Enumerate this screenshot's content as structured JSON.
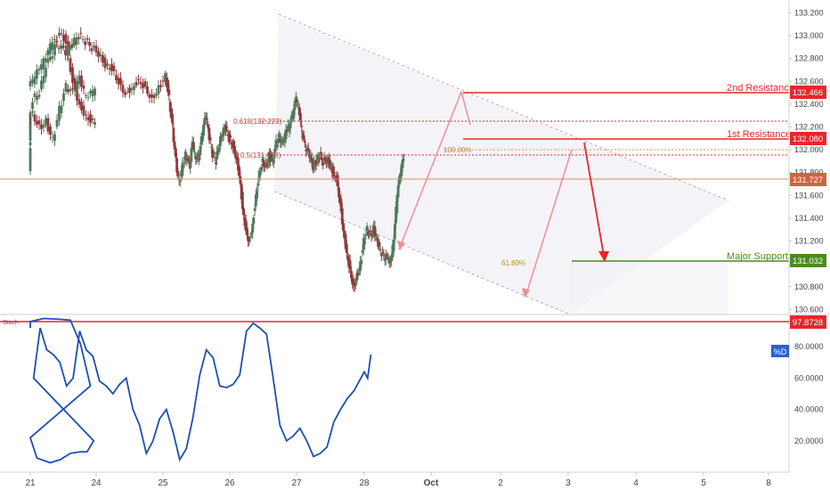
{
  "colors": {
    "up": "#4e7a5c",
    "down": "#8f3b3b",
    "resistance": "#e8262c",
    "support": "#4b8b1f",
    "fib": "#e23434",
    "stoch": "#1d4fb3",
    "channel": "#eeeef4",
    "current": "#d0643f",
    "arrow": "#e23434"
  },
  "chart_data": [
    {
      "type": "candlestick",
      "title": "",
      "x_tick_labels": [
        "21",
        "24",
        "25",
        "26",
        "27",
        "28",
        "Oct",
        "2",
        "3",
        "4",
        "5",
        "8"
      ],
      "y_tick_labels": [
        "133.200",
        "133.000",
        "132.800",
        "132.600",
        "132.400",
        "132.200",
        "132.000",
        "131.800",
        "131.600",
        "131.400",
        "131.200",
        "131.000",
        "130.800",
        "130.600"
      ],
      "ylim": [
        130.58,
        133.25
      ],
      "grid": false,
      "series": [
        {
          "name": "",
          "close_path": [
            [
              20.9,
              131.84
            ],
            [
              20.95,
              132.1
            ],
            [
              21.05,
              132.45
            ],
            [
              21.15,
              132.5
            ],
            [
              21.25,
              132.75
            ],
            [
              21.35,
              132.85
            ],
            [
              21.45,
              133.05
            ],
            [
              21.55,
              132.95
            ],
            [
              21.65,
              132.6
            ],
            [
              21.75,
              132.4
            ],
            [
              21.85,
              132.3
            ],
            [
              21.95,
              132.25
            ],
            [
              22.05,
              132.32
            ],
            [
              22.15,
              132.2
            ],
            [
              22.25,
              132.25
            ],
            [
              22.35,
              132.08
            ],
            [
              22.45,
              132.35
            ],
            [
              22.55,
              132.55
            ],
            [
              22.65,
              132.5
            ],
            [
              22.75,
              132.62
            ],
            [
              22.85,
              132.45
            ],
            [
              22.95,
              132.5
            ],
            [
              23.05,
              132.6
            ],
            [
              23.15,
              132.7
            ],
            [
              23.25,
              132.8
            ],
            [
              23.35,
              132.95
            ],
            [
              23.45,
              132.9
            ],
            [
              23.55,
              132.85
            ],
            [
              23.65,
              132.92
            ],
            [
              23.75,
              133.0
            ],
            [
              23.85,
              132.95
            ],
            [
              23.95,
              132.9
            ],
            [
              24.05,
              132.85
            ],
            [
              24.15,
              132.75
            ],
            [
              24.25,
              132.72
            ],
            [
              24.35,
              132.6
            ],
            [
              24.45,
              132.5
            ],
            [
              24.55,
              132.55
            ],
            [
              24.65,
              132.62
            ],
            [
              24.75,
              132.55
            ],
            [
              24.85,
              132.45
            ],
            [
              24.95,
              132.55
            ],
            [
              25.05,
              132.65
            ],
            [
              25.1,
              132.45
            ],
            [
              25.15,
              132.2
            ],
            [
              25.2,
              131.9
            ],
            [
              25.25,
              131.7
            ],
            [
              25.3,
              131.85
            ],
            [
              25.35,
              131.95
            ],
            [
              25.4,
              131.85
            ],
            [
              25.45,
              132.05
            ],
            [
              25.5,
              131.9
            ],
            [
              25.55,
              131.95
            ],
            [
              25.6,
              132.15
            ],
            [
              25.65,
              132.3
            ],
            [
              25.7,
              132.1
            ],
            [
              25.75,
              131.95
            ],
            [
              25.8,
              131.9
            ],
            [
              25.85,
              132.05
            ],
            [
              25.9,
              132.15
            ],
            [
              25.95,
              132.2
            ],
            [
              26.0,
              132.1
            ],
            [
              26.05,
              132.05
            ],
            [
              26.1,
              131.95
            ],
            [
              26.15,
              131.8
            ],
            [
              26.2,
              131.5
            ],
            [
              26.25,
              131.3
            ],
            [
              26.3,
              131.2
            ],
            [
              26.35,
              131.35
            ],
            [
              26.4,
              131.6
            ],
            [
              26.45,
              131.8
            ],
            [
              26.5,
              131.9
            ],
            [
              26.55,
              131.85
            ],
            [
              26.6,
              131.95
            ],
            [
              26.65,
              131.9
            ],
            [
              26.7,
              132.05
            ],
            [
              26.75,
              132.1
            ],
            [
              26.8,
              132.05
            ],
            [
              26.85,
              132.15
            ],
            [
              26.9,
              132.2
            ],
            [
              26.95,
              132.3
            ],
            [
              27.0,
              132.45
            ],
            [
              27.05,
              132.3
            ],
            [
              27.1,
              132.1
            ],
            [
              27.15,
              132.0
            ],
            [
              27.2,
              131.95
            ],
            [
              27.25,
              131.85
            ],
            [
              27.3,
              131.9
            ],
            [
              27.35,
              131.95
            ],
            [
              27.4,
              131.9
            ],
            [
              27.45,
              131.92
            ],
            [
              27.5,
              131.88
            ],
            [
              27.55,
              131.8
            ],
            [
              27.6,
              131.75
            ],
            [
              27.65,
              131.55
            ],
            [
              27.7,
              131.3
            ],
            [
              27.75,
              131.1
            ],
            [
              27.8,
              130.95
            ],
            [
              27.85,
              130.8
            ],
            [
              27.9,
              130.9
            ],
            [
              27.95,
              131.0
            ],
            [
              28.0,
              131.2
            ],
            [
              28.05,
              131.3
            ],
            [
              28.1,
              131.25
            ],
            [
              28.15,
              131.3
            ],
            [
              28.2,
              131.2
            ],
            [
              28.25,
              131.1
            ],
            [
              28.3,
              131.05
            ],
            [
              28.35,
              131.05
            ],
            [
              28.4,
              131.0
            ],
            [
              28.45,
              131.2
            ],
            [
              28.5,
              131.6
            ],
            [
              28.55,
              131.8
            ],
            [
              28.6,
              131.93
            ]
          ]
        }
      ],
      "lines": [
        {
          "label": "2nd Resistance",
          "value": 132.466,
          "value_text": "132.466"
        },
        {
          "label": "1st Resistance",
          "value": 132.08,
          "value_text": "132.080"
        },
        {
          "label": "Major Support",
          "value": 131.032,
          "value_text": "131.032"
        }
      ],
      "fib_levels": [
        {
          "label": "0.618(132.223)",
          "value": 132.223
        },
        {
          "label": "0.5(131.938)",
          "value": 131.938
        },
        {
          "label": "100.00%",
          "value": 131.985
        },
        {
          "label": "61.80%",
          "value": 131.032
        }
      ],
      "current_price": {
        "value": 131.727,
        "value_text": "131.727"
      }
    },
    {
      "type": "line",
      "title": "",
      "indicator_label": "Stoch",
      "legend_badge": "%D",
      "y_tick_labels": [
        "80.0000",
        "60.0000",
        "40.0000",
        "20.0000"
      ],
      "ylim": [
        0,
        100
      ],
      "level": {
        "value": 97.8728,
        "value_text": "97.8728"
      },
      "series": [
        {
          "name": "%D",
          "points": [
            [
              20.85,
              92
            ],
            [
              21.0,
              96
            ],
            [
              21.2,
              98
            ],
            [
              21.45,
              97.5
            ],
            [
              21.6,
              97
            ],
            [
              21.75,
              82
            ],
            [
              21.9,
              55
            ],
            [
              22.0,
              22
            ],
            [
              22.1,
              9
            ],
            [
              22.3,
              6
            ],
            [
              22.45,
              8
            ],
            [
              22.6,
              12
            ],
            [
              22.75,
              13
            ],
            [
              22.85,
              13
            ],
            [
              22.95,
              20
            ],
            [
              23.05,
              60
            ],
            [
              23.15,
              92
            ],
            [
              23.25,
              78
            ],
            [
              23.35,
              75
            ],
            [
              23.45,
              70
            ],
            [
              23.55,
              55
            ],
            [
              23.65,
              60
            ],
            [
              23.75,
              90
            ],
            [
              23.85,
              78
            ],
            [
              23.95,
              74
            ],
            [
              24.05,
              58
            ],
            [
              24.15,
              55
            ],
            [
              24.25,
              50
            ],
            [
              24.35,
              56
            ],
            [
              24.45,
              60
            ],
            [
              24.55,
              40
            ],
            [
              24.65,
              30
            ],
            [
              24.75,
              12
            ],
            [
              24.85,
              20
            ],
            [
              24.95,
              34
            ],
            [
              25.05,
              40
            ],
            [
              25.15,
              26
            ],
            [
              25.25,
              8
            ],
            [
              25.35,
              15
            ],
            [
              25.45,
              35
            ],
            [
              25.55,
              62
            ],
            [
              25.65,
              78
            ],
            [
              25.75,
              73
            ],
            [
              25.85,
              55
            ],
            [
              25.95,
              54
            ],
            [
              26.05,
              56
            ],
            [
              26.15,
              62
            ],
            [
              26.25,
              90
            ],
            [
              26.35,
              95
            ],
            [
              26.45,
              92
            ],
            [
              26.55,
              88
            ],
            [
              26.65,
              60
            ],
            [
              26.75,
              30
            ],
            [
              26.85,
              20
            ],
            [
              26.95,
              23
            ],
            [
              27.05,
              28
            ],
            [
              27.15,
              20
            ],
            [
              27.25,
              10
            ],
            [
              27.35,
              12
            ],
            [
              27.45,
              16
            ],
            [
              27.55,
              32
            ],
            [
              27.65,
              40
            ],
            [
              27.75,
              47
            ],
            [
              27.85,
              52
            ],
            [
              27.95,
              60
            ],
            [
              28.0,
              64
            ],
            [
              28.05,
              60
            ],
            [
              28.1,
              75
            ]
          ]
        }
      ]
    }
  ]
}
